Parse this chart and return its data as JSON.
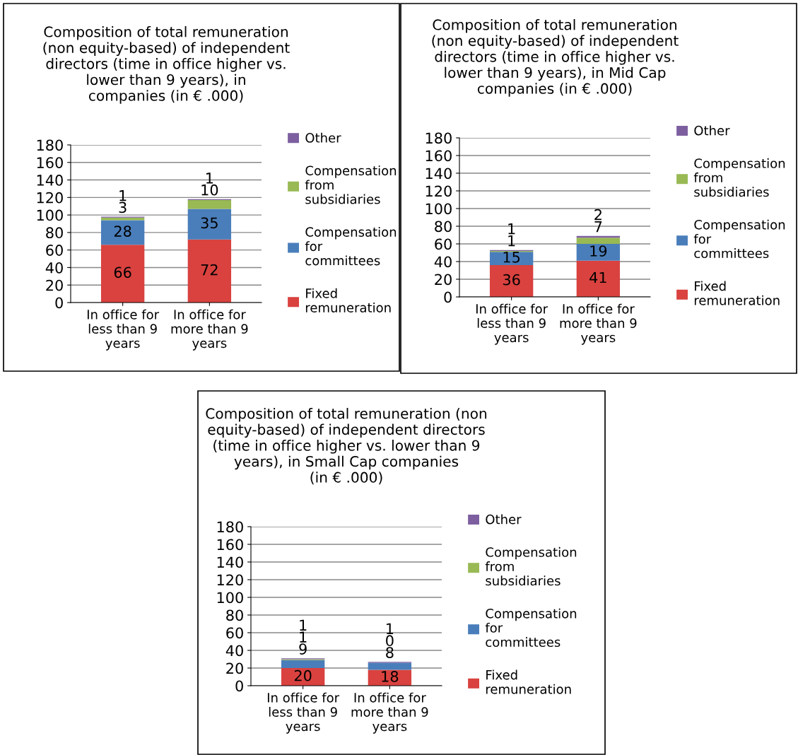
{
  "chart_data": [
    {
      "type": "bar",
      "title": "Composition of total remuneration\n(non equity-based) of independent\ndirectors (time in office higher vs.\nlower than 9 years), in\ncompanies (in € .000)",
      "categories": [
        "In office for\nless than 9\nyears",
        "In office for\nmore than 9\nyears"
      ],
      "stacked": true,
      "data_labels": true,
      "ylim": [
        0,
        180
      ],
      "yticks": [
        0,
        20,
        40,
        60,
        80,
        100,
        120,
        140,
        160,
        180
      ],
      "grid": "y",
      "legend": "right",
      "series": [
        {
          "name": "Fixed\nremuneration",
          "color": "#d9423f",
          "values": [
            66,
            72
          ]
        },
        {
          "name": "Compensation\nfor\ncommittees",
          "color": "#4a7ebb",
          "values": [
            28,
            35
          ]
        },
        {
          "name": "Compensation\nfrom\nsubsidiaries",
          "color": "#98b954",
          "values": [
            3,
            10
          ]
        },
        {
          "name": "Other",
          "color": "#7d5fa0",
          "values": [
            1,
            1
          ]
        }
      ]
    },
    {
      "type": "bar",
      "title": "Composition of total remuneration\n(non equity-based) of independent\ndirectors (time in office higher vs.\nlower than 9 years), in Mid Cap\ncompanies (in € .000)",
      "categories": [
        "In office for\nless than 9\nyears",
        "In office for\nmore than 9\nyears"
      ],
      "stacked": true,
      "data_labels": true,
      "ylim": [
        0,
        180
      ],
      "yticks": [
        0,
        20,
        40,
        60,
        80,
        100,
        120,
        140,
        160,
        180
      ],
      "grid": "y",
      "legend": "right",
      "series": [
        {
          "name": "Fixed\nremuneration",
          "color": "#d9423f",
          "values": [
            36,
            41
          ]
        },
        {
          "name": "Compensation\nfor\ncommittees",
          "color": "#4a7ebb",
          "values": [
            15,
            19
          ]
        },
        {
          "name": "Compensation\nfrom\nsubsidiaries",
          "color": "#98b954",
          "values": [
            1,
            7
          ]
        },
        {
          "name": "Other",
          "color": "#7d5fa0",
          "values": [
            1,
            2
          ]
        }
      ]
    },
    {
      "type": "bar",
      "title": "Composition of total remuneration (non\nequity-based) of independent directors\n(time in office higher vs. lower than 9\nyears), in Small Cap companies\n(in € .000)",
      "categories": [
        "In office for\nless than 9\nyears",
        "In office for\nmore than 9\nyears"
      ],
      "stacked": true,
      "data_labels": true,
      "ylim": [
        0,
        180
      ],
      "yticks": [
        0,
        20,
        40,
        60,
        80,
        100,
        120,
        140,
        160,
        180
      ],
      "grid": "y",
      "legend": "right",
      "series": [
        {
          "name": "Fixed\nremuneration",
          "color": "#d9423f",
          "values": [
            20,
            18
          ]
        },
        {
          "name": "Compensation\nfor\ncommittees",
          "color": "#4a7ebb",
          "values": [
            9,
            8
          ]
        },
        {
          "name": "Compensation\nfrom\nsubsidiaries",
          "color": "#98b954",
          "values": [
            1,
            0
          ]
        },
        {
          "name": "Other",
          "color": "#7d5fa0",
          "values": [
            1,
            1
          ]
        }
      ]
    }
  ]
}
